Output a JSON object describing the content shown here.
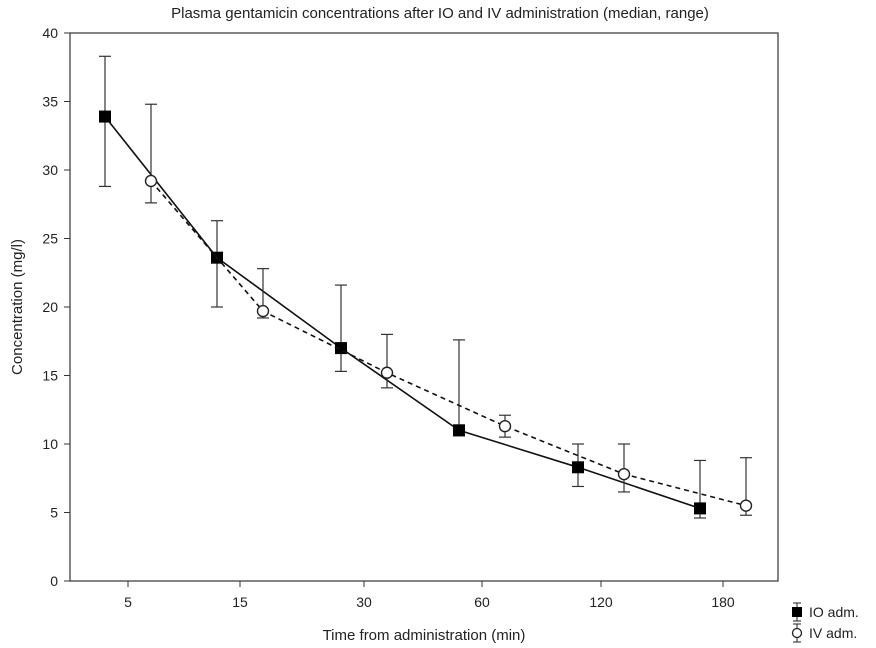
{
  "chart_data": {
    "type": "line",
    "title": "Plasma gentamicin concentrations after IO and IV administration (median, range)",
    "xlabel": "Time from administration (min)",
    "ylabel": "Concentration (mg/l)",
    "ylim": [
      0,
      40
    ],
    "yticks": [
      0,
      5,
      10,
      15,
      20,
      25,
      30,
      35,
      40
    ],
    "categories": [
      "5",
      "15",
      "30",
      "60",
      "120",
      "180"
    ],
    "grid": false,
    "legend_position": "bottom-right",
    "series": [
      {
        "name": "IO adm.",
        "marker": "filled-square",
        "line_style": "solid",
        "color": "#111111",
        "points": [
          {
            "category": "5",
            "median": 33.9,
            "min": 28.8,
            "max": 38.3
          },
          {
            "category": "15",
            "median": 23.6,
            "min": 20.0,
            "max": 26.3
          },
          {
            "category": "30",
            "median": 17.0,
            "min": 15.3,
            "max": 21.6
          },
          {
            "category": "60",
            "median": 11.0,
            "min": 10.6,
            "max": 17.6
          },
          {
            "category": "120",
            "median": 8.3,
            "min": 6.9,
            "max": 10.0
          },
          {
            "category": "180",
            "median": 5.3,
            "min": 4.6,
            "max": 8.8
          }
        ]
      },
      {
        "name": "IV adm.",
        "marker": "open-circle",
        "line_style": "dashed",
        "color": "#111111",
        "points": [
          {
            "category": "5",
            "median": 29.2,
            "min": 27.6,
            "max": 34.8
          },
          {
            "category": "15",
            "median": 19.7,
            "min": 19.2,
            "max": 22.8
          },
          {
            "category": "30",
            "median": 15.2,
            "min": 14.1,
            "max": 18.0
          },
          {
            "category": "60",
            "median": 11.3,
            "min": 10.5,
            "max": 12.1
          },
          {
            "category": "120",
            "median": 7.8,
            "min": 6.5,
            "max": 10.0
          },
          {
            "category": "180",
            "median": 5.5,
            "min": 4.8,
            "max": 9.0
          }
        ]
      }
    ]
  }
}
